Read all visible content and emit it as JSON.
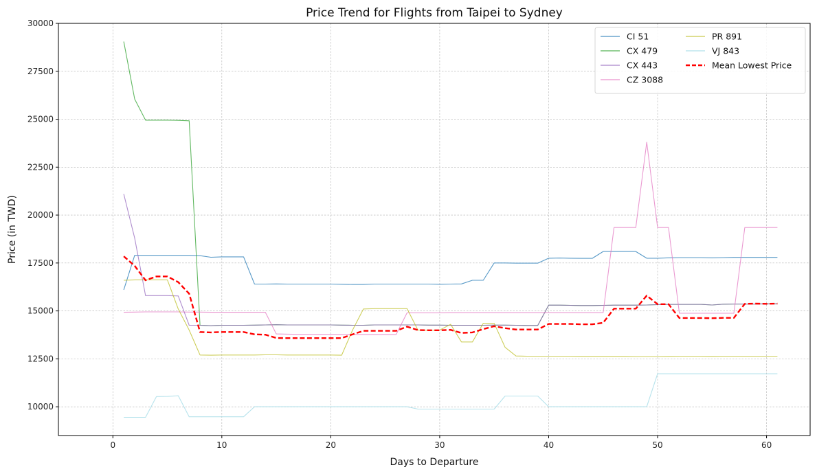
{
  "chart_data": {
    "type": "line",
    "title": "Price Trend for Flights from Taipei to Sydney",
    "xlabel": "Days to Departure",
    "ylabel": "Price (in TWD)",
    "xlim": [
      -5,
      64
    ],
    "ylim": [
      8500,
      30000
    ],
    "xticks": [
      0,
      10,
      20,
      30,
      40,
      50,
      60
    ],
    "yticks": [
      10000,
      12500,
      15000,
      17500,
      20000,
      22500,
      25000,
      27500,
      30000
    ],
    "grid": true,
    "legend_position": "top-right",
    "series": [
      {
        "name": "CI 51",
        "color": "#1f77b4",
        "style": "solid",
        "x": [
          1,
          2,
          3,
          4,
          5,
          6,
          7,
          8,
          9,
          10,
          11,
          12,
          13,
          14,
          15,
          16,
          17,
          18,
          19,
          20,
          21,
          22,
          23,
          24,
          25,
          26,
          27,
          28,
          29,
          30,
          31,
          32,
          33,
          34,
          35,
          36,
          37,
          38,
          39,
          40,
          41,
          42,
          43,
          44,
          45,
          46,
          47,
          48,
          49,
          50,
          51,
          52,
          53,
          54,
          55,
          56,
          57,
          58,
          59,
          60,
          61
        ],
        "y": [
          16100,
          17900,
          17900,
          17900,
          17900,
          17900,
          17900,
          17880,
          17800,
          17820,
          17820,
          17820,
          16400,
          16400,
          16410,
          16400,
          16400,
          16400,
          16400,
          16400,
          16390,
          16380,
          16380,
          16400,
          16400,
          16400,
          16400,
          16400,
          16400,
          16390,
          16400,
          16410,
          16600,
          16600,
          17500,
          17500,
          17490,
          17490,
          17490,
          17750,
          17760,
          17750,
          17740,
          17740,
          18100,
          18100,
          18100,
          18100,
          17750,
          17750,
          17770,
          17780,
          17780,
          17780,
          17770,
          17780,
          17790,
          17790,
          17790,
          17790,
          17790
        ]
      },
      {
        "name": "CX 479",
        "color": "#2ca02c",
        "style": "solid",
        "x": [
          1,
          2,
          3,
          4,
          5,
          6,
          7,
          8,
          9,
          10,
          11,
          12,
          13,
          14,
          15,
          16,
          17,
          18,
          19,
          20,
          21,
          22,
          23,
          24,
          25,
          26,
          27,
          28,
          29,
          30,
          31,
          32,
          33,
          34,
          35,
          36,
          37,
          38,
          39,
          40,
          41,
          42,
          43,
          44,
          45,
          46,
          47,
          48,
          49,
          50,
          51,
          52,
          53,
          54,
          55,
          56,
          57,
          58,
          59,
          60,
          61
        ],
        "y": [
          29050,
          26050,
          24950,
          24950,
          24950,
          24940,
          24920,
          14250,
          14230,
          14250,
          14250,
          14250,
          14260,
          14270,
          14280,
          14270,
          14270,
          14270,
          14270,
          14270,
          14260,
          14250,
          14250,
          14270,
          14270,
          14270,
          14270,
          14270,
          14260,
          14260,
          14250,
          14250,
          14250,
          14250,
          14260,
          14260,
          14250,
          14240,
          14240,
          15300,
          15300,
          15290,
          15280,
          15280,
          15290,
          15300,
          15300,
          15300,
          15310,
          15330,
          15340,
          15340,
          15340,
          15340,
          15310,
          15350,
          15360,
          15360,
          15360,
          15370,
          15370
        ]
      },
      {
        "name": "CX 443",
        "color": "#9467bd",
        "style": "solid",
        "x": [
          1,
          2,
          3,
          4,
          5,
          6,
          7,
          8,
          9,
          10,
          11,
          12,
          13,
          14,
          15,
          16,
          17,
          18,
          19,
          20,
          21,
          22,
          23,
          24,
          25,
          26,
          27,
          28,
          29,
          30,
          31,
          32,
          33,
          34,
          35,
          36,
          37,
          38,
          39,
          40,
          41,
          42,
          43,
          44,
          45,
          46,
          47,
          48,
          49,
          50,
          51,
          52,
          53,
          54,
          55,
          56,
          57,
          58,
          59,
          60,
          61
        ],
        "y": [
          21100,
          18800,
          15800,
          15800,
          15800,
          15780,
          14250,
          14250,
          14230,
          14250,
          14250,
          14250,
          14260,
          14270,
          14280,
          14270,
          14270,
          14270,
          14270,
          14270,
          14260,
          14250,
          14250,
          14270,
          14270,
          14270,
          14270,
          14270,
          14260,
          14260,
          14250,
          14250,
          14250,
          14250,
          14260,
          14260,
          14250,
          14240,
          14240,
          15300,
          15300,
          15290,
          15280,
          15280,
          15290,
          15300,
          15300,
          15300,
          15310,
          15330,
          15340,
          15340,
          15340,
          15340,
          15310,
          15350,
          15360,
          15360,
          15360,
          15370,
          15370
        ]
      },
      {
        "name": "CZ 3088",
        "color": "#e377c2",
        "style": "solid",
        "x": [
          1,
          2,
          3,
          4,
          5,
          6,
          7,
          8,
          9,
          10,
          11,
          12,
          13,
          14,
          15,
          16,
          17,
          18,
          19,
          20,
          21,
          22,
          23,
          24,
          25,
          26,
          27,
          28,
          29,
          30,
          31,
          32,
          33,
          34,
          35,
          36,
          37,
          38,
          39,
          40,
          41,
          42,
          43,
          44,
          45,
          46,
          47,
          48,
          49,
          50,
          51,
          52,
          53,
          54,
          55,
          56,
          57,
          58,
          59,
          60,
          61
        ],
        "y": [
          14930,
          14940,
          14950,
          14950,
          14950,
          14950,
          14940,
          14940,
          14930,
          14930,
          14930,
          14930,
          14930,
          14930,
          13800,
          13790,
          13780,
          13780,
          13780,
          13780,
          13770,
          13770,
          13770,
          13770,
          13770,
          13770,
          14900,
          14900,
          14900,
          14900,
          14910,
          14910,
          14910,
          14910,
          14910,
          14910,
          14910,
          14910,
          14910,
          14910,
          14910,
          14910,
          14910,
          14910,
          14910,
          19350,
          19350,
          19350,
          23800,
          19350,
          19350,
          14880,
          14880,
          14880,
          14880,
          14880,
          14880,
          19350,
          19350,
          19350,
          19350
        ]
      },
      {
        "name": "PR 891",
        "color": "#bcbd22",
        "style": "solid",
        "x": [
          1,
          2,
          3,
          4,
          5,
          6,
          7,
          8,
          9,
          10,
          11,
          12,
          13,
          14,
          15,
          16,
          17,
          18,
          19,
          20,
          21,
          22,
          23,
          24,
          25,
          26,
          27,
          28,
          29,
          30,
          31,
          32,
          33,
          34,
          35,
          36,
          37,
          38,
          39,
          40,
          41,
          42,
          43,
          44,
          45,
          46,
          47,
          48,
          49,
          50,
          51,
          52,
          53,
          54,
          55,
          56,
          57,
          58,
          59,
          60,
          61
        ],
        "y": [
          16600,
          16620,
          16620,
          16620,
          16620,
          15100,
          14000,
          12700,
          12690,
          12700,
          12700,
          12700,
          12700,
          12710,
          12710,
          12700,
          12700,
          12700,
          12700,
          12700,
          12690,
          14000,
          15100,
          15120,
          15120,
          15120,
          15120,
          14000,
          14000,
          14000,
          14300,
          13380,
          13380,
          14350,
          14350,
          13100,
          12650,
          12640,
          12640,
          12640,
          12640,
          12640,
          12630,
          12630,
          12630,
          12630,
          12630,
          12620,
          12620,
          12620,
          12630,
          12640,
          12640,
          12640,
          12630,
          12640,
          12640,
          12640,
          12640,
          12640,
          12640
        ]
      },
      {
        "name": "VJ 843",
        "color": "#9edae5",
        "style": "solid",
        "x": [
          1,
          2,
          3,
          4,
          5,
          6,
          7,
          8,
          9,
          10,
          11,
          12,
          13,
          14,
          15,
          16,
          17,
          18,
          19,
          20,
          21,
          22,
          23,
          24,
          25,
          26,
          27,
          28,
          29,
          30,
          31,
          32,
          33,
          34,
          35,
          36,
          37,
          38,
          39,
          40,
          41,
          42,
          43,
          44,
          45,
          46,
          47,
          48,
          49,
          50,
          51,
          52,
          53,
          54,
          55,
          56,
          57,
          58,
          59,
          60,
          61
        ],
        "y": [
          9450,
          9450,
          9450,
          10530,
          10540,
          10580,
          9480,
          9480,
          9480,
          9480,
          9480,
          9480,
          10000,
          10000,
          10000,
          10000,
          10000,
          10000,
          10000,
          10000,
          10000,
          10000,
          10000,
          10000,
          10000,
          10000,
          10000,
          9880,
          9880,
          9880,
          9880,
          9880,
          9880,
          9880,
          9880,
          10560,
          10560,
          10560,
          10560,
          10000,
          10000,
          10000,
          10000,
          10000,
          10000,
          10000,
          10000,
          10000,
          10000,
          11720,
          11720,
          11720,
          11720,
          11720,
          11720,
          11720,
          11720,
          11720,
          11720,
          11720,
          11720
        ]
      },
      {
        "name": "Mean Lowest Price",
        "color": "#ff0000",
        "style": "dashed",
        "x": [
          1,
          2,
          3,
          4,
          5,
          6,
          7,
          8,
          9,
          10,
          11,
          12,
          13,
          14,
          15,
          16,
          17,
          18,
          19,
          20,
          21,
          22,
          23,
          24,
          25,
          26,
          27,
          28,
          29,
          30,
          31,
          32,
          33,
          34,
          35,
          36,
          37,
          38,
          39,
          40,
          41,
          42,
          43,
          44,
          45,
          46,
          47,
          48,
          49,
          50,
          51,
          52,
          53,
          54,
          55,
          56,
          57,
          58,
          59,
          60,
          61
        ],
        "y": [
          17850,
          17350,
          16600,
          16800,
          16800,
          16500,
          15900,
          13900,
          13880,
          13900,
          13900,
          13900,
          13780,
          13760,
          13590,
          13580,
          13580,
          13580,
          13580,
          13580,
          13580,
          13780,
          13960,
          13960,
          13960,
          13960,
          14180,
          14000,
          13990,
          13990,
          14010,
          13850,
          13880,
          14050,
          14200,
          14100,
          14030,
          14030,
          14030,
          14320,
          14320,
          14320,
          14300,
          14300,
          14380,
          15120,
          15120,
          15120,
          15800,
          15350,
          15350,
          14630,
          14630,
          14630,
          14620,
          14640,
          14640,
          15370,
          15380,
          15370,
          15380
        ]
      }
    ]
  }
}
